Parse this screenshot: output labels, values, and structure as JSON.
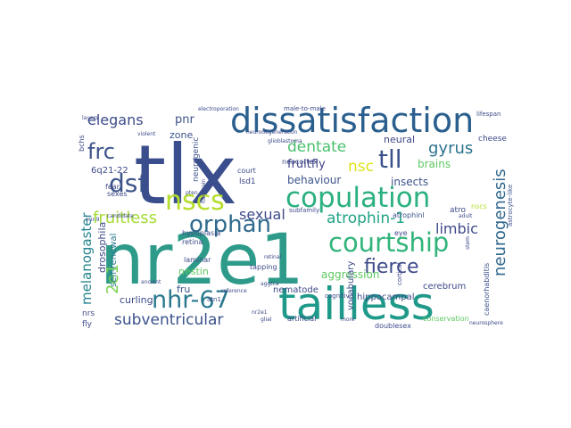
{
  "words": [
    {
      "text": "nr2e1",
      "color": "#2e9b8a"
    },
    {
      "text": "tlx",
      "color": "#3a4d8c"
    },
    {
      "text": "tailless",
      "color": "#1f9a8a"
    },
    {
      "text": "dissatisfaction",
      "color": "#2a5f8e"
    },
    {
      "text": "copulation",
      "color": "#2bb07f"
    },
    {
      "text": "courtship",
      "color": "#32b47b"
    },
    {
      "text": "nhr-67",
      "color": "#2a788e"
    },
    {
      "text": "nscs",
      "color": "#b5de2b"
    },
    {
      "text": "orphan",
      "color": "#2f6b8e"
    },
    {
      "text": "dsf",
      "color": "#3b528b"
    },
    {
      "text": "tll",
      "color": "#3b528b"
    },
    {
      "text": "frc",
      "color": "#3b528b"
    },
    {
      "text": "fierce",
      "color": "#3e4a89"
    },
    {
      "text": "dentate",
      "color": "#4ac16d"
    },
    {
      "text": "elegans",
      "color": "#3e4c8a"
    },
    {
      "text": "gyrus",
      "color": "#2c728e"
    },
    {
      "text": "neurogenesis",
      "color": "#31688e"
    },
    {
      "text": "melanogaster",
      "color": "#25848e"
    },
    {
      "text": "fruitless",
      "color": "#a5db36"
    },
    {
      "text": "atrophin-1",
      "color": "#20a386"
    },
    {
      "text": "subventricular",
      "color": "#3b528b"
    },
    {
      "text": "limbic",
      "color": "#3e4a89"
    },
    {
      "text": "sexual",
      "color": "#3e4a89"
    },
    {
      "text": "nsc",
      "color": "#dde318"
    },
    {
      "text": "2e1",
      "color": "#7ad151"
    },
    {
      "text": "aggression",
      "color": "#5ec962"
    },
    {
      "text": "fruitfly",
      "color": "#414487"
    },
    {
      "text": "behaviour",
      "color": "#3b528b"
    },
    {
      "text": "insects",
      "color": "#3b528b"
    },
    {
      "text": "brains",
      "color": "#5ec962"
    },
    {
      "text": "neural",
      "color": "#3e4a89"
    },
    {
      "text": "pnr",
      "color": "#3b528b"
    },
    {
      "text": "zone",
      "color": "#3b528b"
    },
    {
      "text": "drosophila",
      "color": "#3e4a89"
    },
    {
      "text": "self-renewal",
      "color": "#2a788e"
    },
    {
      "text": "nestin",
      "color": "#5ec962"
    },
    {
      "text": "fru",
      "color": "#3b528b"
    },
    {
      "text": "nematode",
      "color": "#3e4a89"
    },
    {
      "text": "hippocampal",
      "color": "#3e4a89"
    },
    {
      "text": "vocabulary",
      "color": "#3e4a89"
    },
    {
      "text": "cerebrum",
      "color": "#3e4a89"
    },
    {
      "text": "curling",
      "color": "#3e4a89"
    },
    {
      "text": "atrophinl",
      "color": "#3b528b"
    },
    {
      "text": "caenorhabditis",
      "color": "#3b528b"
    },
    {
      "text": "astrocyte-like",
      "color": "#3b528b"
    },
    {
      "text": "neurogenic",
      "color": "#3b528b"
    },
    {
      "text": "6q21-22",
      "color": "#3e4a89"
    },
    {
      "text": "cheese",
      "color": "#3e4a89"
    },
    {
      "text": "lsd1",
      "color": "#3e4a89"
    },
    {
      "text": "court",
      "color": "#3e4a89"
    },
    {
      "text": "neocortex",
      "color": "#3e4a89"
    },
    {
      "text": "subfamily",
      "color": "#3e4a89"
    },
    {
      "text": "retina",
      "color": "#3e4a89"
    },
    {
      "text": "hypoplasia",
      "color": "#3e4a89"
    },
    {
      "text": "laminar",
      "color": "#3e4a89"
    },
    {
      "text": "cognitive",
      "color": "#3e4a89"
    },
    {
      "text": "atn1",
      "color": "#3e4a89"
    },
    {
      "text": "nrs",
      "color": "#3e4a89"
    },
    {
      "text": "fly",
      "color": "#3e4a89"
    },
    {
      "text": "doublesex",
      "color": "#3e4a89"
    },
    {
      "text": "conservation",
      "color": "#5ec962"
    },
    {
      "text": "artificial",
      "color": "#3e4a89"
    },
    {
      "text": "atro",
      "color": "#3e4a89"
    },
    {
      "text": "eye",
      "color": "#3e4a89"
    },
    {
      "text": "tapping",
      "color": "#3e4a89"
    },
    {
      "text": "fear",
      "color": "#3e4a89"
    },
    {
      "text": "sexes",
      "color": "#3e4a89"
    },
    {
      "text": "cortical",
      "color": "#3e4a89"
    },
    {
      "text": "bchs",
      "color": "#3e4a89"
    },
    {
      "text": "nscs",
      "color": "#b5de2b"
    },
    {
      "text": "lifespan",
      "color": "#3e4a89"
    },
    {
      "text": "male-to-male",
      "color": "#3e4a89"
    },
    {
      "text": "electroporation",
      "color": "#3e4a89"
    },
    {
      "text": "neurosphere",
      "color": "#3e4a89"
    },
    {
      "text": "aggtca",
      "color": "#3e4a89"
    },
    {
      "text": "nr2e1",
      "color": "#3e4a89"
    },
    {
      "text": "mir-9",
      "color": "#3e4a89"
    },
    {
      "text": "pten",
      "color": "#3e4a89"
    },
    {
      "text": "layers",
      "color": "#3e4a89"
    },
    {
      "text": "candidate",
      "color": "#3e4a89"
    },
    {
      "text": "forebrain",
      "color": "#3e4a89"
    },
    {
      "text": "glioblastoma",
      "color": "#3e4a89"
    },
    {
      "text": "retinal",
      "color": "#3e4a89"
    },
    {
      "text": "ancient",
      "color": "#3e4a89"
    },
    {
      "text": "glial",
      "color": "#3e4a89"
    },
    {
      "text": "stem",
      "color": "#3e4a89"
    },
    {
      "text": "adult",
      "color": "#3e4a89"
    },
    {
      "text": "neurodegeneration",
      "color": "#3e4a89"
    },
    {
      "text": "violent",
      "color": "#3e4a89"
    },
    {
      "text": "reference",
      "color": "#3e4a89"
    },
    {
      "text": "more",
      "color": "#3e4a89"
    }
  ]
}
